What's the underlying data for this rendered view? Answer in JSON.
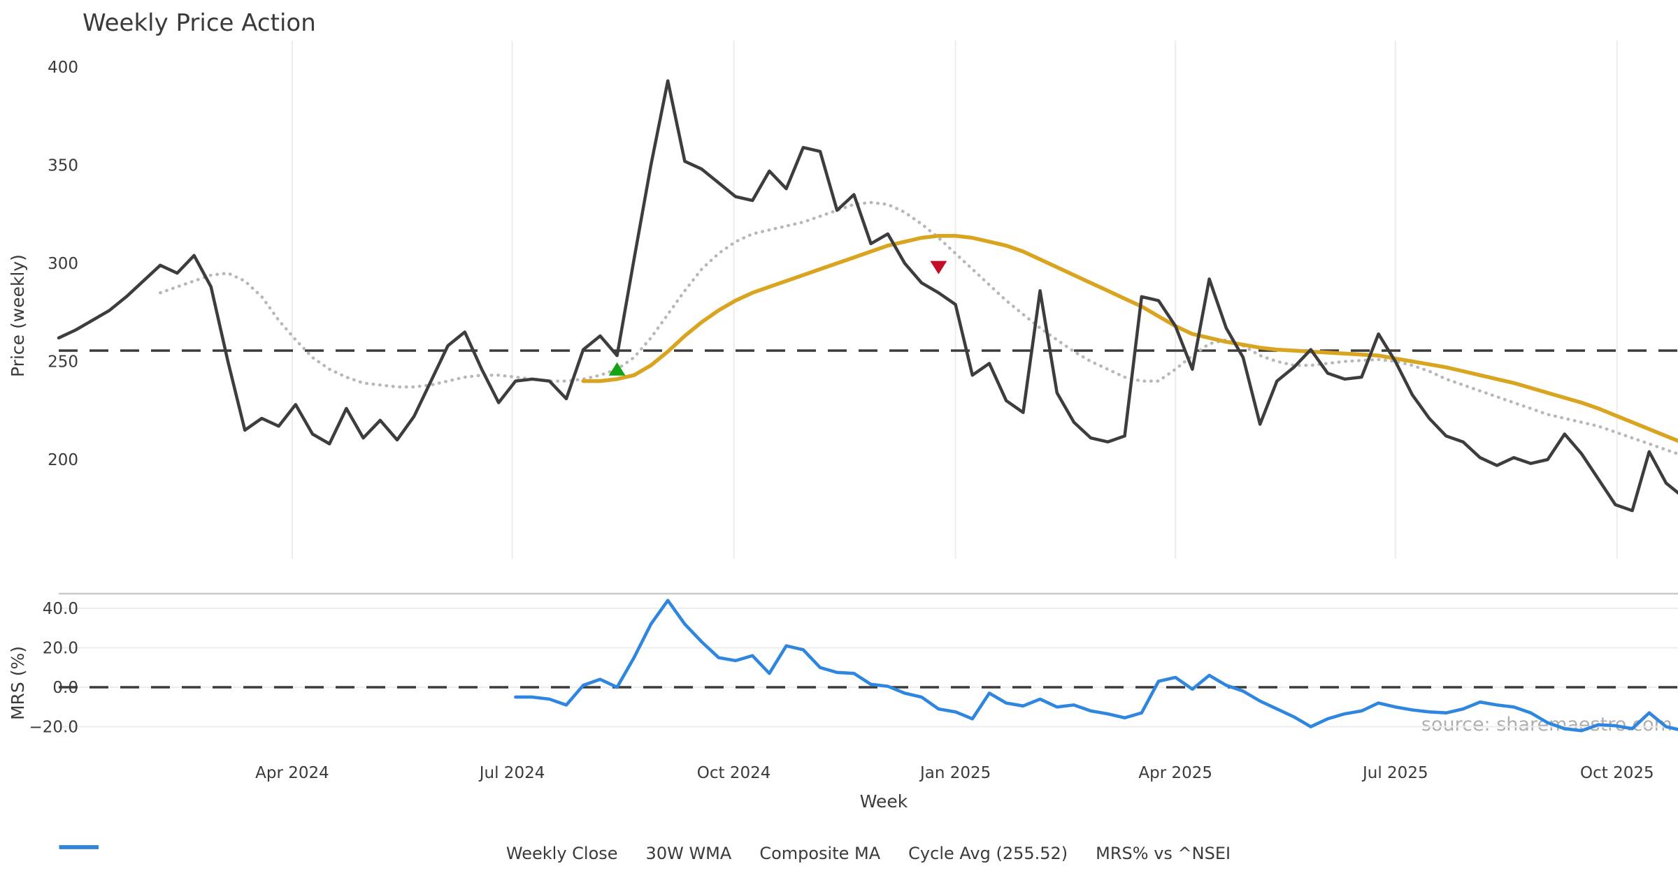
{
  "title": "Weekly Price Action",
  "axes": {
    "price_ylabel": "Price (weekly)",
    "mrs_ylabel": "MRS (%)",
    "xlabel": "Week",
    "price_ticks": [
      "400",
      "350",
      "300",
      "250",
      "200"
    ],
    "mrs_ticks": [
      "40.0",
      "20.0",
      "0.0",
      "−20.0"
    ]
  },
  "legend": [
    {
      "label": "Weekly Close",
      "color": "#3d3d3d",
      "style": "solid"
    },
    {
      "label": "30W WMA",
      "color": "#d9a521",
      "style": "solid"
    },
    {
      "label": "Composite MA",
      "color": "#b8b8b8",
      "style": "dotted"
    },
    {
      "label": "Cycle Avg (255.52)",
      "color": "#3c3c3c",
      "style": "dashed"
    },
    {
      "label": "MRS% vs ^NSEI",
      "color": "#2e86de",
      "style": "solid"
    }
  ],
  "source_note": "source: sharemaestro.com",
  "chart_data": {
    "type": "line",
    "title": "Weekly Price Action",
    "xlabel": "Week",
    "x_unit": "week_index",
    "x_ticks": [
      {
        "label": "Apr 2024",
        "week": 13.8
      },
      {
        "label": "Jul 2024",
        "week": 26.8
      },
      {
        "label": "Oct 2024",
        "week": 39.9
      },
      {
        "label": "Jan 2025",
        "week": 53.0
      },
      {
        "label": "Apr 2025",
        "week": 66.0
      },
      {
        "label": "Jul 2025",
        "week": 79.0
      },
      {
        "label": "Oct 2025",
        "week": 92.1
      }
    ],
    "panels": [
      {
        "name": "price",
        "ylabel": "Price (weekly)",
        "yticks": [
          400,
          350,
          300,
          250,
          200
        ],
        "ylim": [
          172,
          408
        ],
        "grid": "vertical"
      },
      {
        "name": "mrs",
        "ylabel": "MRS (%)",
        "yticks": [
          40,
          20,
          0,
          -20
        ],
        "ylim": [
          -26,
          48
        ],
        "grid": "horizontal"
      }
    ],
    "cycle_avg": 255.52,
    "series": [
      {
        "name": "Weekly Close",
        "panel": "price",
        "color": "#3d3d3d",
        "style": "solid",
        "start_week": 0,
        "values": [
          262,
          266,
          271,
          276,
          283,
          291,
          299,
          295,
          304,
          288,
          250,
          215,
          221,
          217,
          228,
          213,
          208,
          226,
          211,
          220,
          210,
          222,
          240,
          258,
          265,
          246,
          229,
          240,
          241,
          240,
          231,
          256,
          263,
          253,
          302,
          350,
          393,
          352,
          348,
          341,
          334,
          332,
          347,
          338,
          359,
          357,
          327,
          335,
          310,
          315,
          300,
          290,
          285,
          279,
          243,
          249,
          230,
          224,
          286,
          234,
          219,
          211,
          209,
          212,
          283,
          281,
          268,
          246,
          292,
          267,
          252,
          218,
          240,
          247,
          256,
          244,
          241,
          242,
          264,
          250,
          233,
          221,
          212,
          209,
          201,
          197,
          201,
          198,
          200,
          213,
          203,
          190,
          177,
          174,
          204,
          188,
          181
        ]
      },
      {
        "name": "30W WMA",
        "panel": "price",
        "color": "#d9a521",
        "style": "solid",
        "start_week": 31,
        "values": [
          240,
          240,
          241,
          243,
          248,
          255,
          263,
          270,
          276,
          281,
          285,
          288,
          291,
          294,
          297,
          300,
          303,
          306,
          309,
          311,
          313,
          314,
          314,
          313,
          311,
          309,
          306,
          302,
          298,
          294,
          290,
          286,
          282,
          278,
          273,
          268,
          264,
          262,
          260,
          258.5,
          257,
          256,
          255.5,
          255,
          254.5,
          254,
          253.5,
          253,
          251.5,
          250,
          248.5,
          247,
          245,
          243,
          241,
          239,
          236.5,
          234,
          231.5,
          229,
          226,
          222.5,
          219,
          215.5,
          212,
          208.5
        ]
      },
      {
        "name": "Composite MA",
        "panel": "price",
        "color": "#b8b8b8",
        "style": "dotted",
        "start_week": 6,
        "values": [
          285,
          288,
          291,
          294,
          295,
          291,
          283,
          271,
          261,
          252,
          246,
          242,
          239,
          238,
          237,
          237,
          238,
          240,
          242,
          243,
          243,
          242,
          241,
          240,
          240,
          241,
          243,
          246,
          252,
          262,
          274,
          286,
          297,
          305,
          311,
          315,
          317,
          319,
          321,
          324,
          327,
          330,
          331,
          330,
          326,
          320,
          313,
          305,
          297,
          289,
          281,
          274,
          267,
          261,
          255,
          250,
          246,
          242,
          240,
          240,
          246,
          253,
          259,
          261,
          258,
          253,
          250,
          248,
          248,
          249,
          250,
          250.5,
          251,
          250,
          248,
          245,
          241,
          238,
          235,
          232,
          229,
          226,
          223,
          221,
          219,
          217,
          214,
          211,
          208,
          205,
          202
        ]
      },
      {
        "name": "Cycle Avg (255.52)",
        "panel": "price",
        "color": "#3c3c3c",
        "style": "dashed",
        "constant": 255.52
      },
      {
        "name": "MRS% vs ^NSEI",
        "panel": "mrs",
        "color": "#2e86de",
        "style": "solid",
        "start_week": 27,
        "values": [
          -5,
          -5,
          -6,
          -9,
          1,
          4,
          0,
          15,
          32,
          44,
          32,
          23,
          15,
          13.5,
          16,
          7,
          21,
          19,
          10,
          7.5,
          7,
          1.5,
          0.5,
          -3,
          -5,
          -11,
          -12.5,
          -16,
          -3,
          -8,
          -9.5,
          -6,
          -10,
          -9,
          -12,
          -13.5,
          -15.5,
          -13,
          3,
          5,
          -1,
          6,
          1,
          -2,
          -7,
          -11,
          -15,
          -20,
          -16,
          -13.5,
          -12,
          -8,
          -10,
          -11.5,
          -12.5,
          -13,
          -11,
          -7.5,
          -9,
          -10,
          -13,
          -18,
          -21,
          -22,
          -19,
          -19.5,
          -21,
          -13,
          -20,
          -22
        ]
      }
    ],
    "signals": [
      {
        "type": "buy",
        "week": 33,
        "price": 246,
        "color": "#16a216",
        "shape": "triangle-up"
      },
      {
        "type": "sell",
        "week": 52,
        "price": 298,
        "color": "#c40d28",
        "shape": "triangle-down"
      }
    ]
  }
}
